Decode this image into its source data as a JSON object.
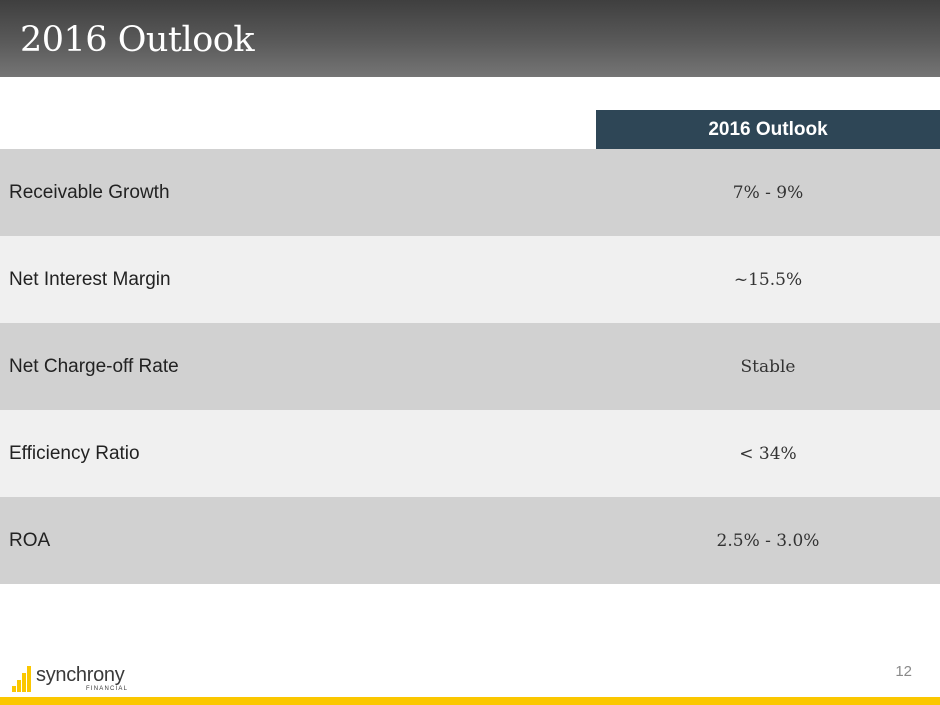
{
  "slide": {
    "title": "2016 Outlook",
    "page_number": "12"
  },
  "table": {
    "column_header": "2016 Outlook",
    "rows": [
      {
        "label": "Receivable Growth",
        "value": "7% - 9%"
      },
      {
        "label": "Net Interest Margin",
        "value": "~15.5%"
      },
      {
        "label": "Net Charge-off Rate",
        "value": "Stable"
      },
      {
        "label": "Efficiency Ratio",
        "value": "< 34%"
      },
      {
        "label": "ROA",
        "value": "2.5% - 3.0%"
      }
    ]
  },
  "logo": {
    "name": "synchrony",
    "sub": "FINANCIAL"
  },
  "colors": {
    "header_bg": "#2e4656",
    "accent_bar": "#fbc700",
    "logo_bars": "#fbc700"
  }
}
